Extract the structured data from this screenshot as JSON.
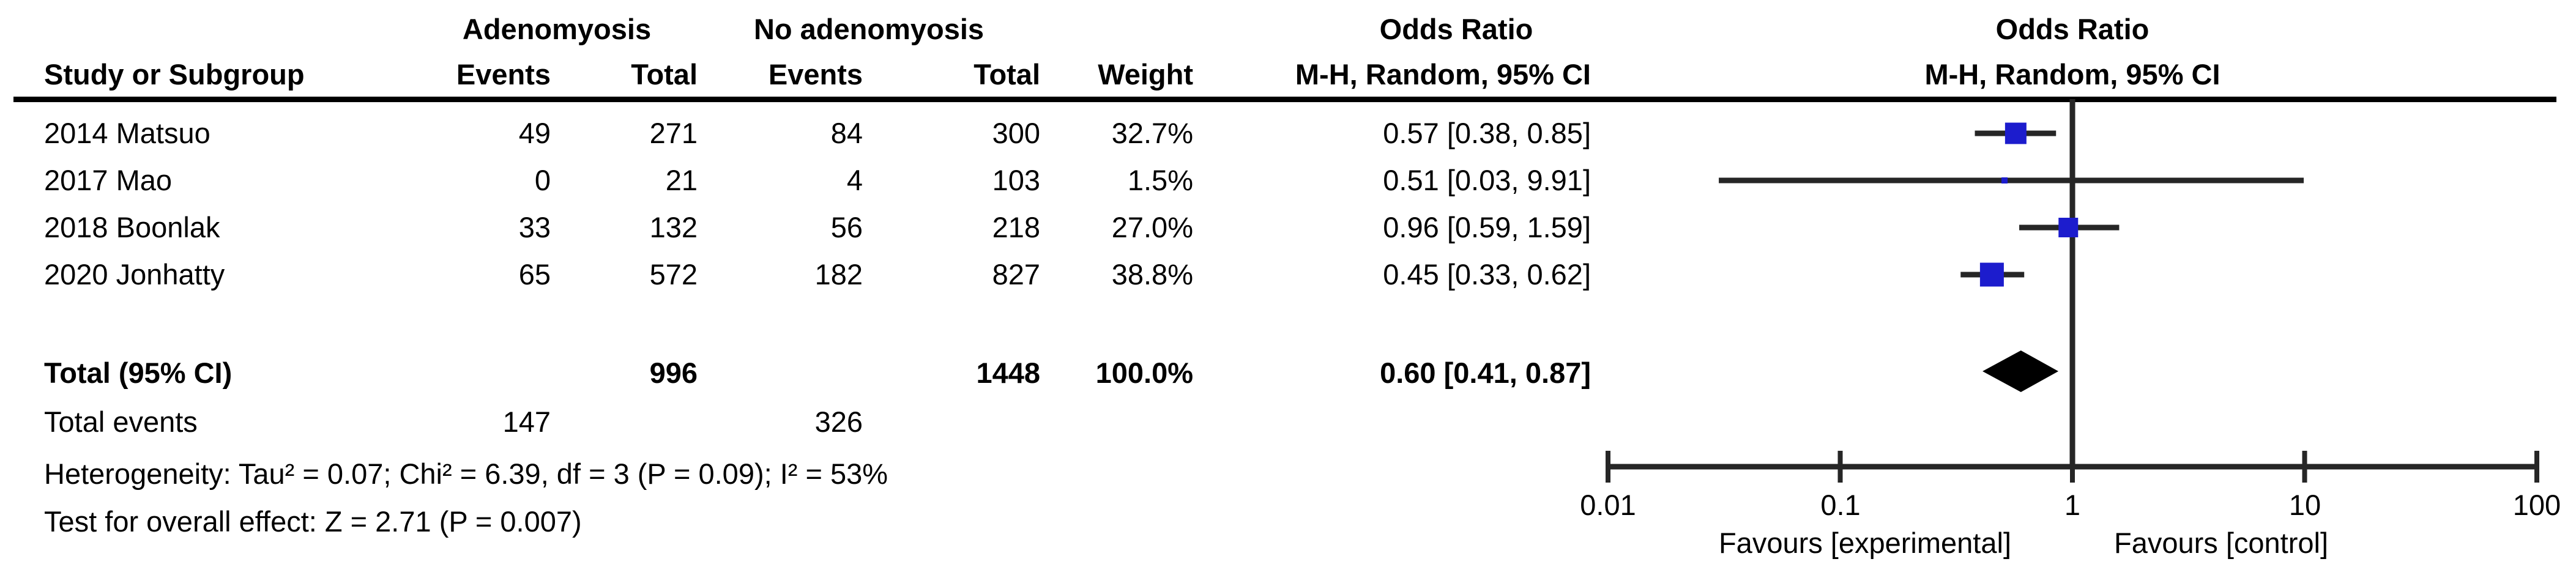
{
  "table": {
    "header": {
      "group1": "Adenomyosis",
      "group2": "No adenomyosis",
      "or_col_line1": "Odds Ratio",
      "or_col_line2": "M-H, Random, 95% CI",
      "plot_col_line1": "Odds Ratio",
      "plot_col_line2": "M-H, Random, 95% CI",
      "study": "Study or Subgroup",
      "events": "Events",
      "total": "Total",
      "events2": "Events",
      "total2": "Total",
      "weight": "Weight"
    },
    "rows": [
      {
        "study": "2014 Matsuo",
        "events1": "49",
        "total1": "271",
        "events2": "84",
        "total2": "300",
        "weight": "32.7%",
        "or_ci": "0.57 [0.38, 0.85]"
      },
      {
        "study": "2017 Mao",
        "events1": "0",
        "total1": "21",
        "events2": "4",
        "total2": "103",
        "weight": "1.5%",
        "or_ci": "0.51 [0.03, 9.91]"
      },
      {
        "study": "2018 Boonlak",
        "events1": "33",
        "total1": "132",
        "events2": "56",
        "total2": "218",
        "weight": "27.0%",
        "or_ci": "0.96 [0.59, 1.59]"
      },
      {
        "study": "2020 Jonhatty",
        "events1": "65",
        "total1": "572",
        "events2": "182",
        "total2": "827",
        "weight": "38.8%",
        "or_ci": "0.45 [0.33, 0.62]"
      }
    ],
    "total_row": {
      "label": "Total (95% CI)",
      "total1": "996",
      "total2": "1448",
      "weight": "100.0%",
      "or_ci": "0.60 [0.41, 0.87]"
    },
    "total_events": {
      "label": "Total events",
      "events1": "147",
      "events2": "326"
    },
    "footnotes": {
      "heterogeneity": "Heterogeneity: Tau² = 0.07; Chi² = 6.39, df = 3 (P = 0.09); I² = 53%",
      "overall_effect": "Test for overall effect: Z = 2.71 (P = 0.007)"
    }
  },
  "chart_data": {
    "type": "forest",
    "effect_measure": "Odds Ratio",
    "method_label": "M-H, Random, 95% CI",
    "x_axis": {
      "scale": "log10",
      "ticks": [
        0.01,
        0.1,
        1,
        10,
        100
      ],
      "tick_labels": [
        "0.01",
        "0.1",
        "1",
        "10",
        "100"
      ]
    },
    "null_line": 1,
    "studies": [
      {
        "name": "2014 Matsuo",
        "or": 0.57,
        "ci_low": 0.38,
        "ci_high": 0.85,
        "weight_pct": 32.7
      },
      {
        "name": "2017 Mao",
        "or": 0.51,
        "ci_low": 0.03,
        "ci_high": 9.91,
        "weight_pct": 1.5
      },
      {
        "name": "2018 Boonlak",
        "or": 0.96,
        "ci_low": 0.59,
        "ci_high": 1.59,
        "weight_pct": 27.0
      },
      {
        "name": "2020 Jonhatty",
        "or": 0.45,
        "ci_low": 0.33,
        "ci_high": 0.62,
        "weight_pct": 38.8
      }
    ],
    "total": {
      "or": 0.6,
      "ci_low": 0.41,
      "ci_high": 0.87
    },
    "favours_left": "Favours [experimental]",
    "favours_right": "Favours [control]",
    "marker_color": "#1c1ccd",
    "line_color": "#262626",
    "diamond_color": "#000000"
  }
}
